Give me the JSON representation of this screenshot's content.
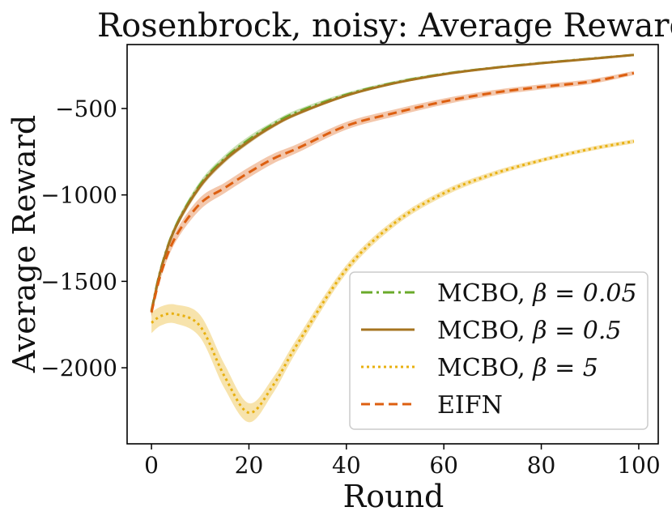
{
  "chart_data": {
    "type": "line",
    "title": "Rosenbrock, noisy: Average Reward",
    "xlabel": "Round",
    "ylabel": "Average Reward",
    "xlim": [
      -5,
      104
    ],
    "ylim": [
      -2440,
      -130
    ],
    "xticks": [
      0,
      20,
      40,
      60,
      80,
      100
    ],
    "xtick_labels": [
      "0",
      "20",
      "40",
      "60",
      "80",
      "100"
    ],
    "yticks": [
      -500,
      -1000,
      -1500,
      -2000
    ],
    "ytick_labels": [
      "−500",
      "−1000",
      "−1500",
      "−2000"
    ],
    "grid": false,
    "legend_position": "lower-right",
    "x": [
      0,
      2,
      5,
      10,
      15,
      20,
      25,
      30,
      40,
      50,
      60,
      70,
      80,
      90,
      99
    ],
    "series": [
      {
        "name": "MCBO, β = 0.05",
        "legend_prefix": "MCBO, ",
        "legend_math": "β = 0.05",
        "color": "#6aaa2a",
        "dash": "14,5,3,5",
        "values": [
          -1670,
          -1420,
          -1180,
          -940,
          -790,
          -680,
          -590,
          -520,
          -420,
          -350,
          -300,
          -265,
          -237,
          -212,
          -190
        ],
        "band": [
          20,
          20,
          20,
          20,
          20,
          20,
          15,
          15,
          12,
          10,
          8,
          6,
          6,
          5,
          5
        ]
      },
      {
        "name": "MCBO, β = 0.5",
        "legend_prefix": "MCBO, ",
        "legend_math": "β = 0.5",
        "color": "#a67420",
        "dash": "",
        "values": [
          -1675,
          -1425,
          -1185,
          -950,
          -800,
          -690,
          -600,
          -530,
          -425,
          -353,
          -302,
          -266,
          -238,
          -213,
          -190
        ],
        "band": [
          20,
          20,
          20,
          18,
          16,
          14,
          12,
          10,
          8,
          6,
          5,
          5,
          4,
          4,
          4
        ]
      },
      {
        "name": "MCBO, β = 5",
        "legend_prefix": "MCBO, ",
        "legend_math": "β = 5",
        "color": "#e8b010",
        "dash": "3,4",
        "values": [
          -1740,
          -1700,
          -1690,
          -1760,
          -2050,
          -2260,
          -2100,
          -1860,
          -1430,
          -1160,
          -990,
          -880,
          -800,
          -735,
          -690
        ],
        "band": [
          60,
          55,
          55,
          65,
          70,
          55,
          45,
          35,
          25,
          20,
          18,
          15,
          12,
          12,
          12
        ]
      },
      {
        "name": "EIFN",
        "legend_prefix": "EIFN",
        "legend_math": "",
        "color": "#dd5f10",
        "dash": "11,6",
        "values": [
          -1680,
          -1450,
          -1240,
          -1050,
          -960,
          -870,
          -790,
          -730,
          -600,
          -525,
          -460,
          -410,
          -375,
          -345,
          -295
        ],
        "band": [
          25,
          25,
          30,
          35,
          30,
          30,
          28,
          25,
          22,
          20,
          18,
          16,
          15,
          14,
          12
        ]
      }
    ]
  }
}
